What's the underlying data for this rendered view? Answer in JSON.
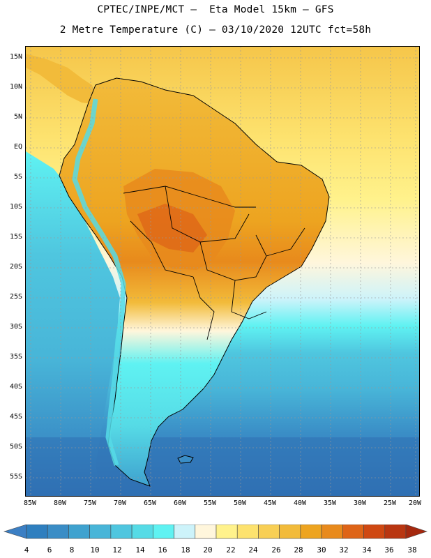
{
  "header": {
    "line1": "CPTEC/INPE/MCT –  Eta Model 15km – GFS",
    "line2": "2 Metre Temperature (C) – 03/10/2020 12UTC fct=58h"
  },
  "map": {
    "lat_labels": [
      "15N",
      "10N",
      "5N",
      "EQ",
      "5S",
      "10S",
      "15S",
      "20S",
      "25S",
      "30S",
      "35S",
      "40S",
      "45S",
      "50S",
      "55S"
    ],
    "lon_labels": [
      "85W",
      "80W",
      "75W",
      "70W",
      "65W",
      "60W",
      "55W",
      "50W",
      "45W",
      "40W",
      "35W",
      "30W",
      "25W",
      "20W"
    ]
  },
  "colorbar": {
    "labels": [
      "4",
      "6",
      "8",
      "10",
      "12",
      "14",
      "16",
      "18",
      "20",
      "22",
      "24",
      "26",
      "28",
      "30",
      "32",
      "34",
      "36",
      "38"
    ],
    "colors": [
      "#3b7fc4",
      "#2f7fbf",
      "#3a8dc6",
      "#3fa2cf",
      "#48b5d8",
      "#4fc6df",
      "#56dbe6",
      "#5ff2f2",
      "#cdf3fa",
      "#fff6dc",
      "#fff28c",
      "#fde26e",
      "#f8cf55",
      "#f2bb3a",
      "#eda420",
      "#e88a1c",
      "#de6417",
      "#cf4812",
      "#b93611",
      "#a5280e"
    ]
  }
}
